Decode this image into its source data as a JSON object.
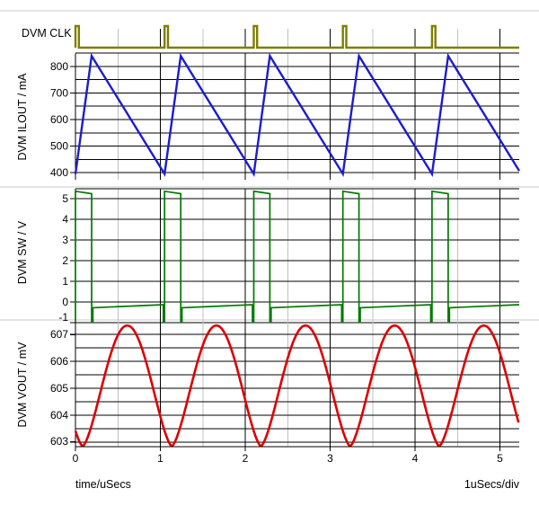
{
  "window": {
    "background": "#ffffff"
  },
  "footer": {
    "x_axis_label": "time/uSecs",
    "x_scale_label": "1uSecs/div"
  },
  "colors": {
    "grid_major": "#000000",
    "grid_minor_vertical": "#c0c0c0",
    "separator": "#c8c8c8",
    "text": "#000000",
    "background": "#ffffff"
  },
  "x_axis": {
    "units": "uSecs",
    "ticks": [
      0,
      1,
      2,
      3,
      4,
      5
    ],
    "minor_step": 0.5,
    "range": [
      0,
      5.23
    ],
    "scale_per_div": "1uSecs/div"
  },
  "chart_data": [
    {
      "name": "DVM CLK",
      "type": "digital",
      "color": "#7e7e00",
      "y_range": [
        0,
        1
      ],
      "waveform": {
        "kind": "pulses",
        "pulse_times": [
          0,
          1.05,
          2.1,
          3.15,
          4.2
        ],
        "pulse_width": 0.04,
        "low": 0,
        "high": 1
      }
    },
    {
      "name": "DVM ILOUT / mA",
      "type": "line",
      "color": "#1c1ccf",
      "y_ticks": [
        400,
        500,
        600,
        700,
        800
      ],
      "y_minor_ticks": [
        450,
        550,
        650,
        750,
        850
      ],
      "y_range": [
        373,
        849
      ],
      "top_border": false,
      "waveform": {
        "kind": "sawtooth",
        "period": 1.05,
        "rise_time": 0.19,
        "min": 395,
        "max": 840
      }
    },
    {
      "name": "DVM SW / V",
      "type": "line",
      "color": "#007a00",
      "y_ticks": [
        -1,
        0,
        1,
        2,
        3,
        4,
        5
      ],
      "y_minor_ticks": [],
      "y_range": [
        -1,
        5.48
      ],
      "top_border": true,
      "waveform": {
        "kind": "switch",
        "period": 1.05,
        "on_time": 0.19,
        "high_start": 5.36,
        "high_end": 5.24,
        "low_start": -0.28,
        "low_end": -0.13,
        "dip": -0.93,
        "dip_width": 0.015
      }
    },
    {
      "name": "DVM VOUT / mV",
      "type": "line",
      "color": "#dd0000",
      "y_ticks": [
        603,
        604,
        605,
        606,
        607
      ],
      "y_minor_ticks": [
        603.5,
        604.5,
        605.5,
        606.5
      ],
      "y_range": [
        602.83,
        607.47
      ],
      "top_border": false,
      "waveform": {
        "kind": "ripple",
        "period": 1.05,
        "min": 602.85,
        "max": 607.33,
        "t_min": 0.085,
        "shape_exp": 0.75
      }
    }
  ]
}
